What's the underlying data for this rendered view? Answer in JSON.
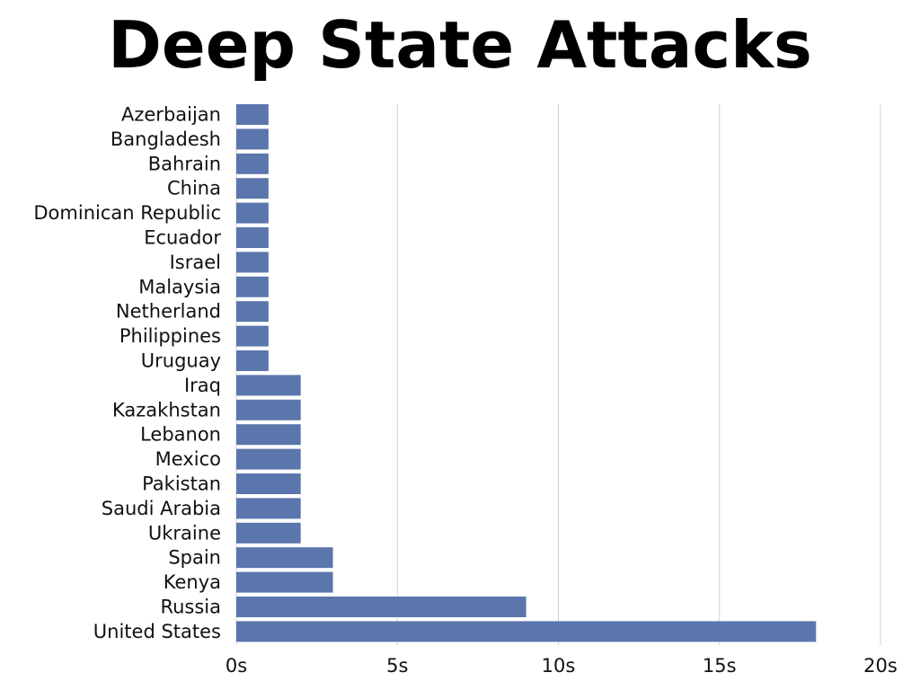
{
  "colors": {
    "bar": "#5b76ac",
    "grid": "#d0d0d0",
    "text": "#111111"
  },
  "chart_data": {
    "type": "bar",
    "orientation": "horizontal",
    "title": "Deep State Attacks",
    "xlabel": "",
    "ylabel": "",
    "categories": [
      "Azerbaijan",
      "Bangladesh",
      "Bahrain",
      "China",
      "Dominican Republic",
      "Ecuador",
      "Israel",
      "Malaysia",
      "Netherland",
      "Philippines",
      "Uruguay",
      "Iraq",
      "Kazakhstan",
      "Lebanon",
      "Mexico",
      "Pakistan",
      "Saudi Arabia",
      "Ukraine",
      "Spain",
      "Kenya",
      "Russia",
      "United States"
    ],
    "values": [
      1,
      1,
      1,
      1,
      1,
      1,
      1,
      1,
      1,
      1,
      1,
      2,
      2,
      2,
      2,
      2,
      2,
      2,
      3,
      3,
      9,
      18
    ],
    "xlim": [
      0,
      20
    ],
    "x_ticks": [
      0,
      5,
      10,
      15,
      20
    ],
    "x_tick_labels": [
      "0s",
      "5s",
      "10s",
      "15s",
      "20s"
    ],
    "grid": "vertical",
    "legend": "none"
  }
}
